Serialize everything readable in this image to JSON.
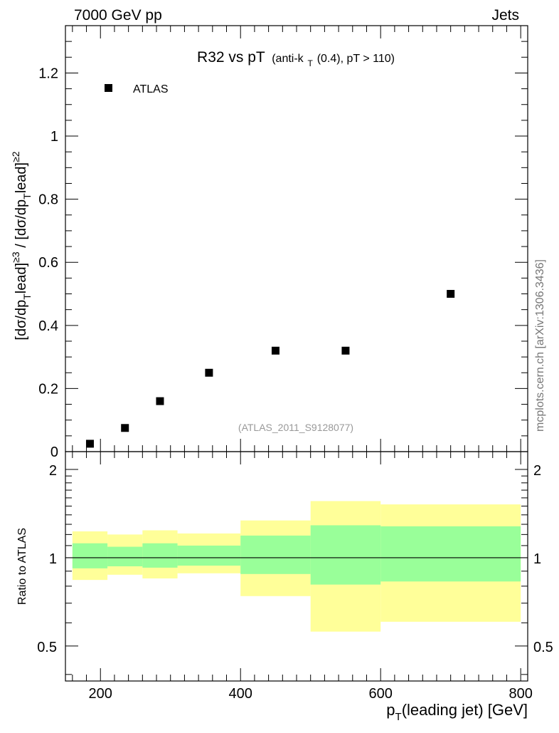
{
  "header": {
    "energy": "7000 GeV pp",
    "category": "Jets"
  },
  "watermark": "mcplots.cern.ch [arXiv:1306.3436]",
  "chart_data": [
    {
      "type": "scatter",
      "panel": "main",
      "title_main": "R32 vs pT",
      "title_sub_prefix": "(anti-k",
      "title_sub_sub": "T",
      "title_sub_suffix": "(0.4), pT > 110)",
      "ylabel": "[dσ/dp_T^lead]^≥3 / [dσ/dp_T^lead]^≥2",
      "ylabel_parts": [
        "[dσ/dp",
        "T",
        "lead]",
        "≥3",
        " / [dσ/dp",
        "T",
        "lead]",
        "≥2"
      ],
      "xlim": [
        150,
        810
      ],
      "ylim": [
        0,
        1.35
      ],
      "yticks": [
        0,
        0.2,
        0.4,
        0.6,
        0.8,
        1,
        1.2
      ],
      "ytick_labels": [
        "0",
        "0.2",
        "0.4",
        "0.6",
        "0.8",
        "1",
        "1.2"
      ],
      "analysis_label": "(ATLAS_2011_S9128077)",
      "legend_position": "top-left",
      "series": [
        {
          "name": "ATLAS",
          "marker": "square",
          "color": "#000000",
          "x": [
            185,
            235,
            285,
            355,
            450,
            550,
            700
          ],
          "y": [
            0.025,
            0.075,
            0.16,
            0.25,
            0.32,
            0.32,
            0.5
          ]
        }
      ]
    },
    {
      "type": "area",
      "panel": "ratio",
      "ylabel": "Ratio to ATLAS",
      "xlabel": "p_T(leading jet) [GeV]",
      "xlabel_parts": [
        "p",
        "T",
        "(leading jet) [GeV]"
      ],
      "xlim": [
        150,
        810
      ],
      "ylim": [
        0.38,
        2.3
      ],
      "yscale": "log",
      "yticks": [
        0.5,
        1,
        2
      ],
      "ytick_labels": [
        "0.5",
        "1",
        "2"
      ],
      "xticks": [
        200,
        400,
        600,
        800
      ],
      "xtick_labels": [
        "200",
        "400",
        "600",
        "800"
      ],
      "reference_line": 1,
      "bins": [
        {
          "lo": 160,
          "hi": 210,
          "yellow": [
            0.84,
            1.23
          ],
          "green": [
            0.92,
            1.12
          ]
        },
        {
          "lo": 210,
          "hi": 260,
          "yellow": [
            0.875,
            1.2
          ],
          "green": [
            0.935,
            1.09
          ]
        },
        {
          "lo": 260,
          "hi": 310,
          "yellow": [
            0.85,
            1.24
          ],
          "green": [
            0.925,
            1.12
          ]
        },
        {
          "lo": 310,
          "hi": 400,
          "yellow": [
            0.885,
            1.21
          ],
          "green": [
            0.94,
            1.1
          ]
        },
        {
          "lo": 400,
          "hi": 500,
          "yellow": [
            0.74,
            1.34
          ],
          "green": [
            0.88,
            1.19
          ]
        },
        {
          "lo": 500,
          "hi": 600,
          "yellow": [
            0.56,
            1.56
          ],
          "green": [
            0.81,
            1.29
          ]
        },
        {
          "lo": 600,
          "hi": 800,
          "yellow": [
            0.605,
            1.52
          ],
          "green": [
            0.83,
            1.28
          ]
        }
      ],
      "colors": {
        "yellow": "#ffff99",
        "green": "#99ff99"
      }
    }
  ]
}
